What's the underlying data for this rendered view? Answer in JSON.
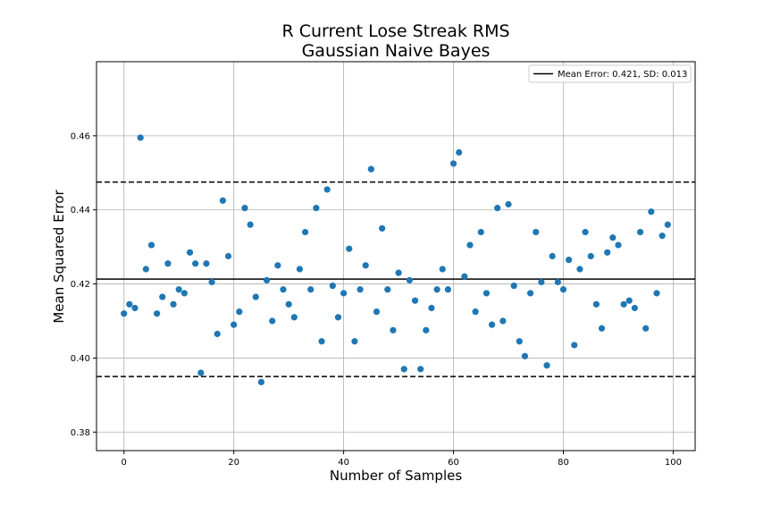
{
  "chart_data": {
    "type": "scatter",
    "title": "R Current Lose Streak RMS",
    "subtitle": "Gaussian Naive Bayes",
    "xlabel": "Number of Samples",
    "ylabel": "Mean Squared Error",
    "xlim": [
      -5,
      104
    ],
    "ylim": [
      0.375,
      0.48
    ],
    "xticks": [
      0,
      20,
      40,
      60,
      80,
      100
    ],
    "yticks": [
      0.38,
      0.4,
      0.42,
      0.44,
      0.46
    ],
    "xtick_labels": [
      "0",
      "20",
      "40",
      "60",
      "80",
      "100"
    ],
    "ytick_labels": [
      "0.38",
      "0.40",
      "0.42",
      "0.44",
      "0.46"
    ],
    "grid": true,
    "legend_position": "top-right",
    "legend_label": "Mean Error: 0.421, SD: 0.013",
    "mean": 0.4213,
    "upper_band": 0.4475,
    "lower_band": 0.395,
    "point_color": "#1f77b4",
    "x": [
      0,
      1,
      2,
      3,
      4,
      5,
      6,
      7,
      8,
      9,
      10,
      11,
      12,
      13,
      14,
      15,
      16,
      17,
      18,
      19,
      20,
      21,
      22,
      23,
      24,
      25,
      26,
      27,
      28,
      29,
      30,
      31,
      32,
      33,
      34,
      35,
      36,
      37,
      38,
      39,
      40,
      41,
      42,
      43,
      44,
      45,
      46,
      47,
      48,
      49,
      50,
      51,
      52,
      53,
      54,
      55,
      56,
      57,
      58,
      59,
      60,
      61,
      62,
      63,
      64,
      65,
      66,
      67,
      68,
      69,
      70,
      71,
      72,
      73,
      74,
      75,
      76,
      77,
      78,
      79,
      80,
      81,
      82,
      83,
      84,
      85,
      86,
      87,
      88,
      89,
      90,
      91,
      92,
      93,
      94,
      95,
      96,
      97,
      98,
      99
    ],
    "y": [
      0.412,
      0.4145,
      0.4135,
      0.4595,
      0.424,
      0.4305,
      0.412,
      0.4165,
      0.4255,
      0.4145,
      0.4185,
      0.4175,
      0.4285,
      0.4255,
      0.396,
      0.4255,
      0.4205,
      0.4065,
      0.4425,
      0.4275,
      0.409,
      0.4125,
      0.4405,
      0.436,
      0.4165,
      0.3935,
      0.421,
      0.41,
      0.425,
      0.4185,
      0.4145,
      0.411,
      0.424,
      0.434,
      0.4185,
      0.4405,
      0.4045,
      0.4455,
      0.4195,
      0.411,
      0.4175,
      0.4295,
      0.4045,
      0.4185,
      0.425,
      0.451,
      0.4125,
      0.435,
      0.4185,
      0.4075,
      0.423,
      0.397,
      0.421,
      0.4155,
      0.397,
      0.4075,
      0.4135,
      0.4185,
      0.424,
      0.4185,
      0.4525,
      0.4555,
      0.422,
      0.4305,
      0.4125,
      0.434,
      0.4175,
      0.409,
      0.4405,
      0.41,
      0.4415,
      0.4195,
      0.4045,
      0.4005,
      0.4175,
      0.434,
      0.4205,
      0.398,
      0.4275,
      0.4205,
      0.4185,
      0.4265,
      0.4035,
      0.424,
      0.434,
      0.4275,
      0.4145,
      0.408,
      0.4285,
      0.4325,
      0.4305,
      0.4145,
      0.4155,
      0.4135,
      0.434,
      0.408,
      0.4395,
      0.4175,
      0.433,
      0.436
    ]
  }
}
